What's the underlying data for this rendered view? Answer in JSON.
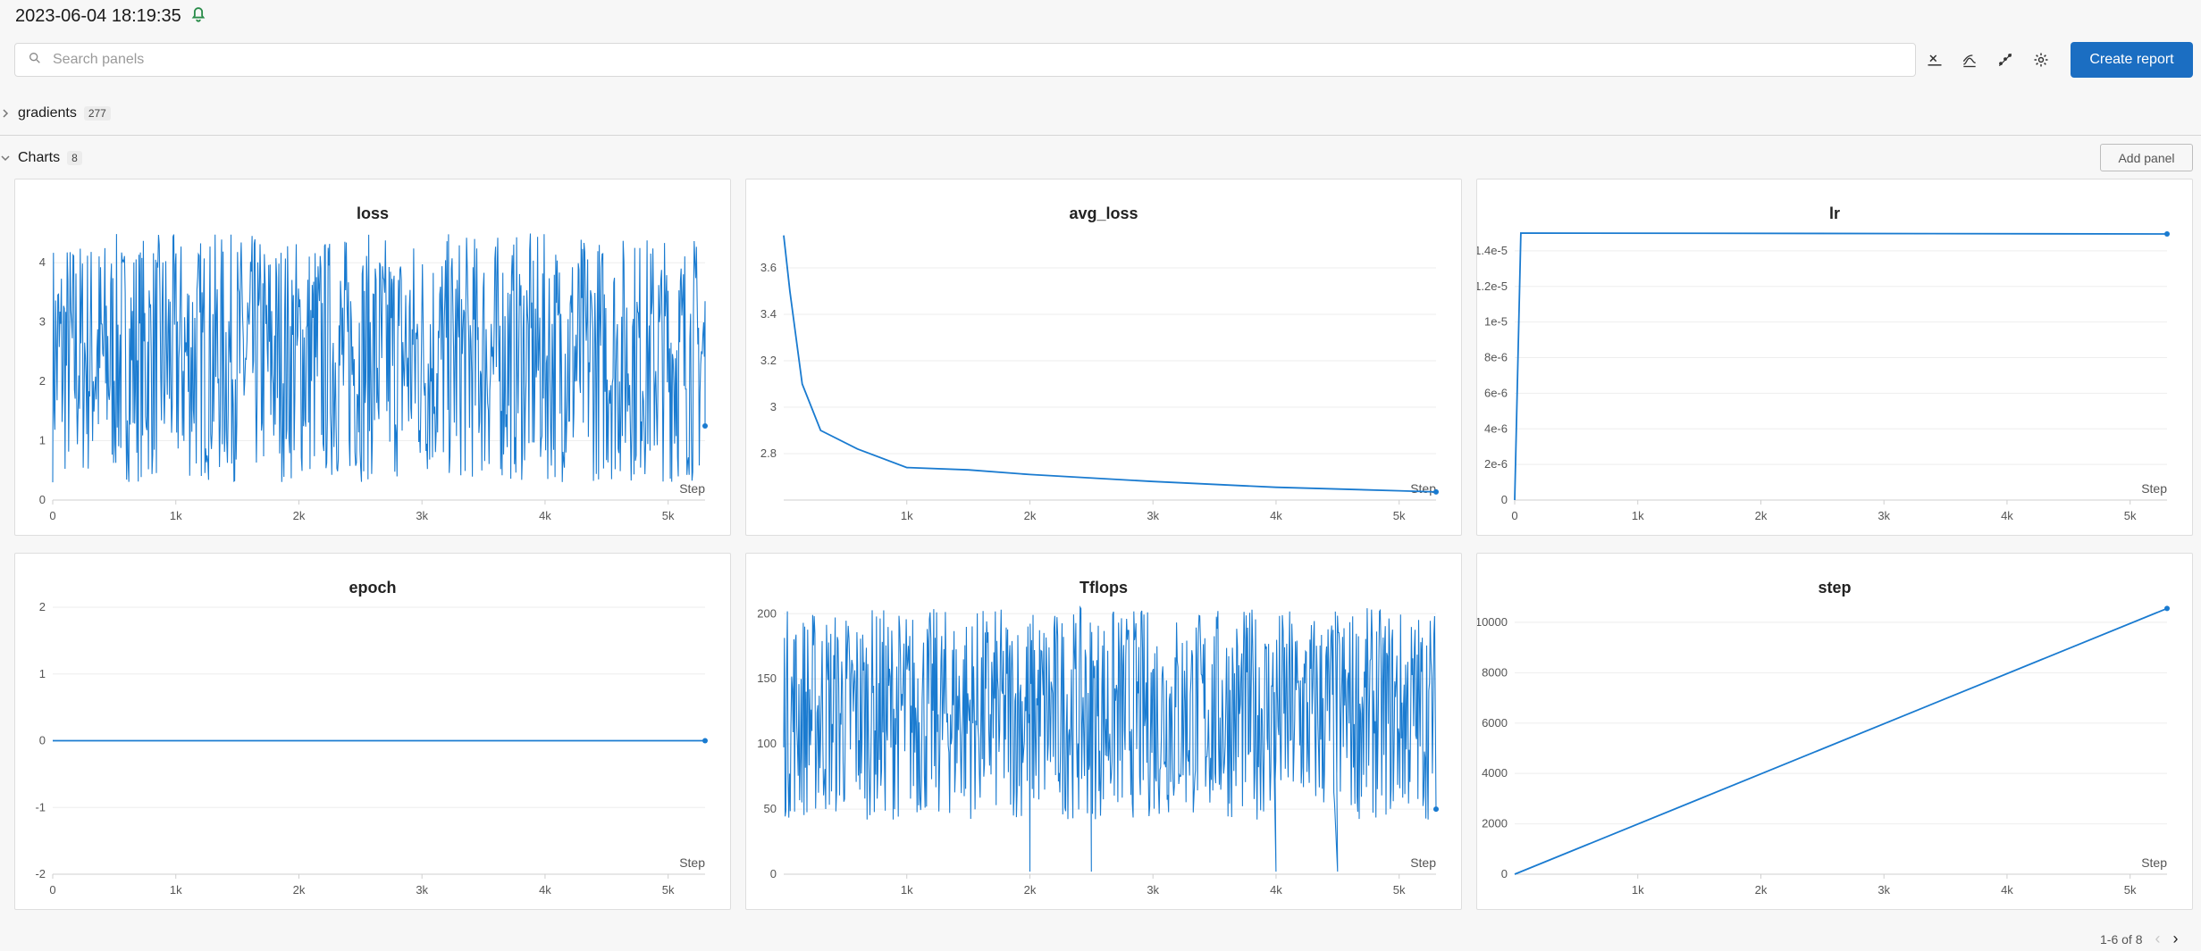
{
  "header": {
    "timestamp": "2023-06-04 18:19:35"
  },
  "search": {
    "placeholder": "Search panels"
  },
  "toolbar": {
    "create_report_label": "Create report",
    "icons": [
      "x-axis-icon",
      "smoothing-icon",
      "outlier-icon",
      "gear-icon"
    ]
  },
  "sections": {
    "gradients": {
      "label": "gradients",
      "count": "277"
    },
    "charts": {
      "label": "Charts",
      "count": "8",
      "add_panel_label": "Add panel"
    }
  },
  "pager": {
    "label": "1-6 of 8"
  },
  "colors": {
    "line": "#1a7bd0",
    "accent": "#1b6ec2"
  },
  "chart_data": [
    {
      "type": "line",
      "title": "loss",
      "xlabel": "Step",
      "xlim": [
        0,
        5300
      ],
      "ylim": [
        0,
        4.5
      ],
      "xticks": [
        0,
        1000,
        2000,
        3000,
        4000,
        5000
      ],
      "xtick_labels": [
        "0",
        "1k",
        "2k",
        "3k",
        "4k",
        "5k"
      ],
      "yticks": [
        0,
        1,
        2,
        3,
        4
      ],
      "ytick_labels": [
        "0",
        "1",
        "2",
        "3",
        "4"
      ],
      "pattern": "noise",
      "noise": {
        "low": 0.3,
        "high": 4.5,
        "floor": 0,
        "count": 900
      },
      "last": [
        5300,
        1.25
      ]
    },
    {
      "type": "line",
      "title": "avg_loss",
      "xlabel": "Step",
      "xlim": [
        0,
        5300
      ],
      "ylim": [
        2.6,
        3.75
      ],
      "xticks": [
        1000,
        2000,
        3000,
        4000,
        5000
      ],
      "xtick_labels": [
        "1k",
        "2k",
        "3k",
        "4k",
        "5k"
      ],
      "yticks": [
        2.8,
        3,
        3.2,
        3.4,
        3.6
      ],
      "ytick_labels": [
        "2.8",
        "3",
        "3.2",
        "3.4",
        "3.6"
      ],
      "pattern": "decay",
      "points": [
        [
          0,
          3.74
        ],
        [
          50,
          3.5
        ],
        [
          150,
          3.1
        ],
        [
          300,
          2.9
        ],
        [
          600,
          2.82
        ],
        [
          1000,
          2.74
        ],
        [
          1500,
          2.73
        ],
        [
          2000,
          2.71
        ],
        [
          3000,
          2.68
        ],
        [
          4000,
          2.655
        ],
        [
          5000,
          2.64
        ],
        [
          5300,
          2.635
        ]
      ],
      "last": [
        5300,
        2.635
      ]
    },
    {
      "type": "line",
      "title": "lr",
      "xlabel": "Step",
      "xlim": [
        0,
        5300
      ],
      "ylim": [
        0,
        1.5e-05
      ],
      "xticks": [
        0,
        1000,
        2000,
        3000,
        4000,
        5000
      ],
      "xtick_labels": [
        "0",
        "1k",
        "2k",
        "3k",
        "4k",
        "5k"
      ],
      "yticks": [
        0,
        2e-06,
        4e-06,
        6e-06,
        8e-06,
        1e-05,
        1.2e-05,
        1.4e-05
      ],
      "ytick_labels": [
        "0",
        "2e-6",
        "4e-6",
        "6e-6",
        "8e-6",
        "1e-5",
        "1.2e-5",
        "1.4e-5"
      ],
      "pattern": "line",
      "points": [
        [
          0,
          0
        ],
        [
          50,
          1.5e-05
        ],
        [
          5300,
          1.495e-05
        ]
      ],
      "last": [
        5300,
        1.495e-05
      ]
    },
    {
      "type": "line",
      "title": "epoch",
      "xlabel": "Step",
      "xlim": [
        0,
        5300
      ],
      "ylim": [
        -2,
        2
      ],
      "xticks": [
        0,
        1000,
        2000,
        3000,
        4000,
        5000
      ],
      "xtick_labels": [
        "0",
        "1k",
        "2k",
        "3k",
        "4k",
        "5k"
      ],
      "yticks": [
        -2,
        -1,
        0,
        1,
        2
      ],
      "ytick_labels": [
        "-2",
        "-1",
        "0",
        "1",
        "2"
      ],
      "pattern": "line",
      "points": [
        [
          0,
          0
        ],
        [
          5300,
          0
        ]
      ],
      "last": [
        5300,
        0
      ]
    },
    {
      "type": "line",
      "title": "Tflops",
      "xlabel": "Step",
      "xlim": [
        0,
        5300
      ],
      "ylim": [
        0,
        205
      ],
      "xticks": [
        1000,
        2000,
        3000,
        4000,
        5000
      ],
      "xtick_labels": [
        "1k",
        "2k",
        "3k",
        "4k",
        "5k"
      ],
      "yticks": [
        0,
        50,
        100,
        150,
        200
      ],
      "ytick_labels": [
        "0",
        "50",
        "100",
        "150",
        "200"
      ],
      "pattern": "noise",
      "noise": {
        "low": 42,
        "high": 205,
        "floor": 42,
        "count": 900
      },
      "spikes": [
        2000,
        2500,
        4000,
        4500
      ],
      "last": [
        5300,
        50
      ]
    },
    {
      "type": "line",
      "title": "step",
      "xlabel": "Step",
      "xlim": [
        0,
        5300
      ],
      "ylim": [
        0,
        10600
      ],
      "xticks": [
        1000,
        2000,
        3000,
        4000,
        5000
      ],
      "xtick_labels": [
        "1k",
        "2k",
        "3k",
        "4k",
        "5k"
      ],
      "yticks": [
        0,
        2000,
        4000,
        6000,
        8000,
        10000
      ],
      "ytick_labels": [
        "0",
        "2000",
        "4000",
        "6000",
        "8000",
        "10000"
      ],
      "pattern": "line",
      "points": [
        [
          0,
          0
        ],
        [
          5300,
          10550
        ]
      ],
      "last": [
        5300,
        10550
      ]
    }
  ]
}
